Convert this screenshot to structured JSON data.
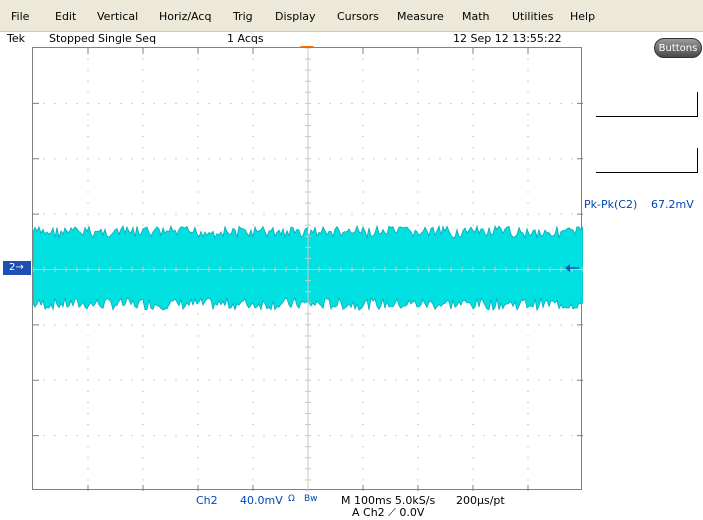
{
  "menu": {
    "items": [
      "File",
      "Edit",
      "Vertical",
      "Horiz/Acq",
      "Trig",
      "Display",
      "Cursors",
      "Measure",
      "Math",
      "Utilities",
      "Help"
    ]
  },
  "status": {
    "brand": "Tek",
    "state": "Stopped",
    "mode": "Single Seq",
    "acqs": "1 Acqs",
    "datetime": "12 Sep 12 13:55:22"
  },
  "right_panel": {
    "buttons_label": "Buttons"
  },
  "measurement": {
    "label": "Pk-Pk(C2)",
    "value": "67.2mV"
  },
  "channel_marker": {
    "label": "2",
    "arrow": "→"
  },
  "bottom": {
    "channel": "Ch2",
    "scale": "40.0mV",
    "coupling_glyph": "Ω",
    "bw": "Bw",
    "timebase": "M 100ms 5.0kS/s",
    "resolution": "200µs/pt",
    "trigger": "A Ch2 ⟋ 0.0V"
  },
  "colors": {
    "trace": "#00e0e0",
    "trace_edge": "#0aa8b8",
    "grid_dots": "#a0a0a0",
    "channel_blue": "#1f4fb3",
    "trigger_marker": "#ff7000"
  },
  "icons": {
    "trigger-position-marker": "orange-down-triangle",
    "ground-level-arrow": "blue-left-arrow"
  }
}
